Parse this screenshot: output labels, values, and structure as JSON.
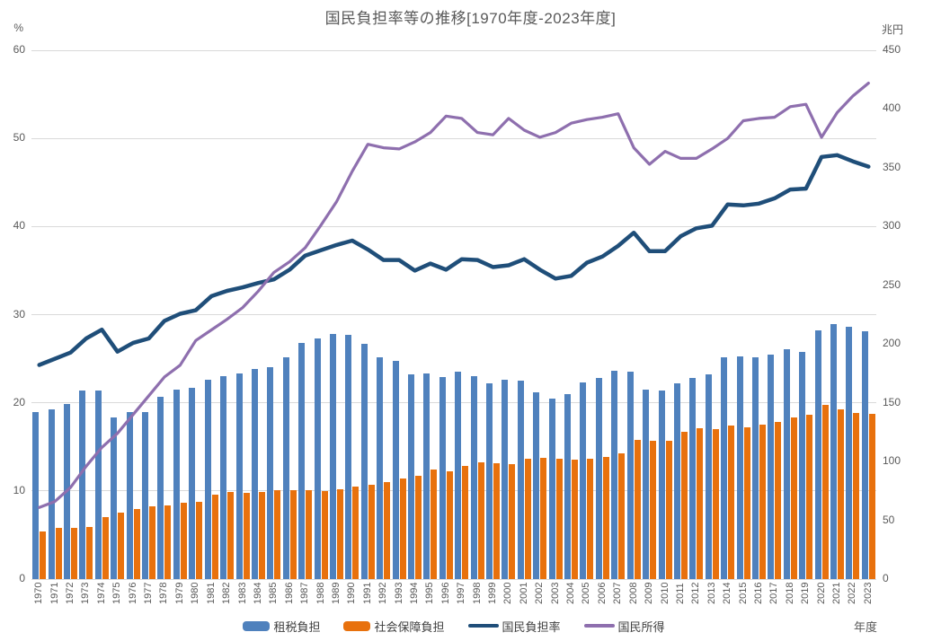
{
  "title": "国民負担率等の推移[1970年度-2023年度]",
  "left_axis": {
    "unit": "%",
    "ticks": [
      0,
      10,
      20,
      30,
      40,
      50,
      60
    ]
  },
  "right_axis": {
    "unit": "兆円",
    "ticks": [
      0,
      50,
      100,
      150,
      200,
      250,
      300,
      350,
      400,
      450
    ]
  },
  "x_axis": {
    "unit": "年度"
  },
  "colors": {
    "tax_bar": "#4F81BD",
    "social_bar": "#E8710D",
    "burden_line": "#1F4E79",
    "income_line": "#8E6FAE",
    "gridline": "#D9D9D9",
    "text": "#595959"
  },
  "legend": [
    {
      "label": "租税負担",
      "swatch": "bar",
      "color": "#4F81BD"
    },
    {
      "label": "社会保障負担",
      "swatch": "bar",
      "color": "#E8710D"
    },
    {
      "label": "国民負担率",
      "swatch": "line",
      "color": "#1F4E79"
    },
    {
      "label": "国民所得",
      "swatch": "line",
      "color": "#8E6FAE"
    }
  ],
  "chart_data": {
    "type": "bar",
    "subtype": "combo-bar-line-two-axes",
    "title": "国民負担率等の推移[1970年度-2023年度]",
    "xlabel": "年度",
    "ylabel_left": "%",
    "ylabel_right": "兆円",
    "ylim_left": [
      0,
      60
    ],
    "ylim_right": [
      0,
      450
    ],
    "grid": true,
    "legend_position": "bottom",
    "categories": [
      "1970",
      "1971",
      "1972",
      "1973",
      "1974",
      "1975",
      "1976",
      "1977",
      "1978",
      "1979",
      "1980",
      "1981",
      "1982",
      "1983",
      "1984",
      "1985",
      "1986",
      "1987",
      "1988",
      "1989",
      "1990",
      "1991",
      "1992",
      "1993",
      "1994",
      "1995",
      "1996",
      "1997",
      "1998",
      "1999",
      "2000",
      "2001",
      "2002",
      "2003",
      "2004",
      "2005",
      "2006",
      "2007",
      "2008",
      "2009",
      "2010",
      "2011",
      "2012",
      "2013",
      "2014",
      "2015",
      "2016",
      "2017",
      "2018",
      "2019",
      "2020",
      "2021",
      "2022",
      "2023"
    ],
    "series": [
      {
        "name": "租税負担",
        "type": "bar",
        "axis": "left",
        "unit": "%",
        "color": "#4F81BD",
        "values": [
          18.9,
          19.3,
          19.9,
          21.4,
          21.4,
          18.3,
          18.9,
          18.9,
          20.7,
          21.5,
          21.7,
          22.6,
          23.0,
          23.3,
          23.8,
          24.0,
          25.2,
          26.8,
          27.3,
          27.8,
          27.7,
          26.7,
          25.2,
          24.8,
          23.2,
          23.3,
          22.9,
          23.5,
          23.0,
          22.2,
          22.6,
          22.5,
          21.2,
          20.5,
          21.0,
          22.3,
          22.8,
          23.6,
          23.5,
          21.5,
          21.4,
          22.2,
          22.8,
          23.2,
          25.2,
          25.3,
          25.2,
          25.5,
          26.1,
          25.8,
          28.2,
          28.9,
          28.6,
          28.1
        ]
      },
      {
        "name": "社会保障負担",
        "type": "bar",
        "axis": "left",
        "unit": "%",
        "color": "#E8710D",
        "values": [
          5.4,
          5.8,
          5.8,
          5.9,
          7.0,
          7.5,
          7.9,
          8.3,
          8.4,
          8.7,
          8.8,
          9.6,
          9.9,
          9.8,
          9.9,
          10.1,
          10.1,
          10.1,
          10.0,
          10.2,
          10.5,
          10.7,
          11.0,
          11.4,
          11.7,
          12.4,
          12.2,
          12.8,
          13.2,
          13.1,
          13.0,
          13.7,
          13.8,
          13.6,
          13.5,
          13.7,
          13.9,
          14.3,
          15.8,
          15.7,
          15.7,
          16.7,
          17.1,
          17.0,
          17.4,
          17.2,
          17.5,
          17.8,
          18.3,
          18.6,
          19.8,
          19.3,
          18.8,
          18.7
        ]
      },
      {
        "name": "国民負担率",
        "type": "line",
        "axis": "left",
        "unit": "%",
        "color": "#1F4E79",
        "values": [
          24.3,
          25.0,
          25.7,
          27.3,
          28.3,
          25.8,
          26.8,
          27.3,
          29.3,
          30.1,
          30.5,
          32.1,
          32.7,
          33.1,
          33.6,
          34.0,
          35.1,
          36.7,
          37.3,
          37.9,
          38.4,
          37.4,
          36.2,
          36.2,
          35.0,
          35.8,
          35.1,
          36.3,
          36.2,
          35.4,
          35.6,
          36.3,
          35.1,
          34.1,
          34.4,
          35.9,
          36.6,
          37.8,
          39.3,
          37.2,
          37.2,
          38.9,
          39.8,
          40.1,
          42.5,
          42.4,
          42.6,
          43.2,
          44.2,
          44.3,
          47.9,
          48.1,
          47.4,
          46.8
        ]
      },
      {
        "name": "国民所得",
        "type": "line",
        "axis": "right",
        "unit": "兆円",
        "color": "#8E6FAE",
        "values": [
          61,
          66,
          78,
          96,
          112,
          124,
          140,
          156,
          172,
          182,
          203,
          212,
          221,
          231,
          245,
          261,
          270,
          282,
          301,
          321,
          347,
          370,
          367,
          366,
          372,
          380,
          394,
          392,
          380,
          378,
          392,
          382,
          376,
          380,
          388,
          391,
          393,
          396,
          367,
          353,
          364,
          358,
          358,
          366,
          375,
          390,
          392,
          393,
          402,
          404,
          376,
          397,
          411,
          422
        ]
      }
    ]
  }
}
